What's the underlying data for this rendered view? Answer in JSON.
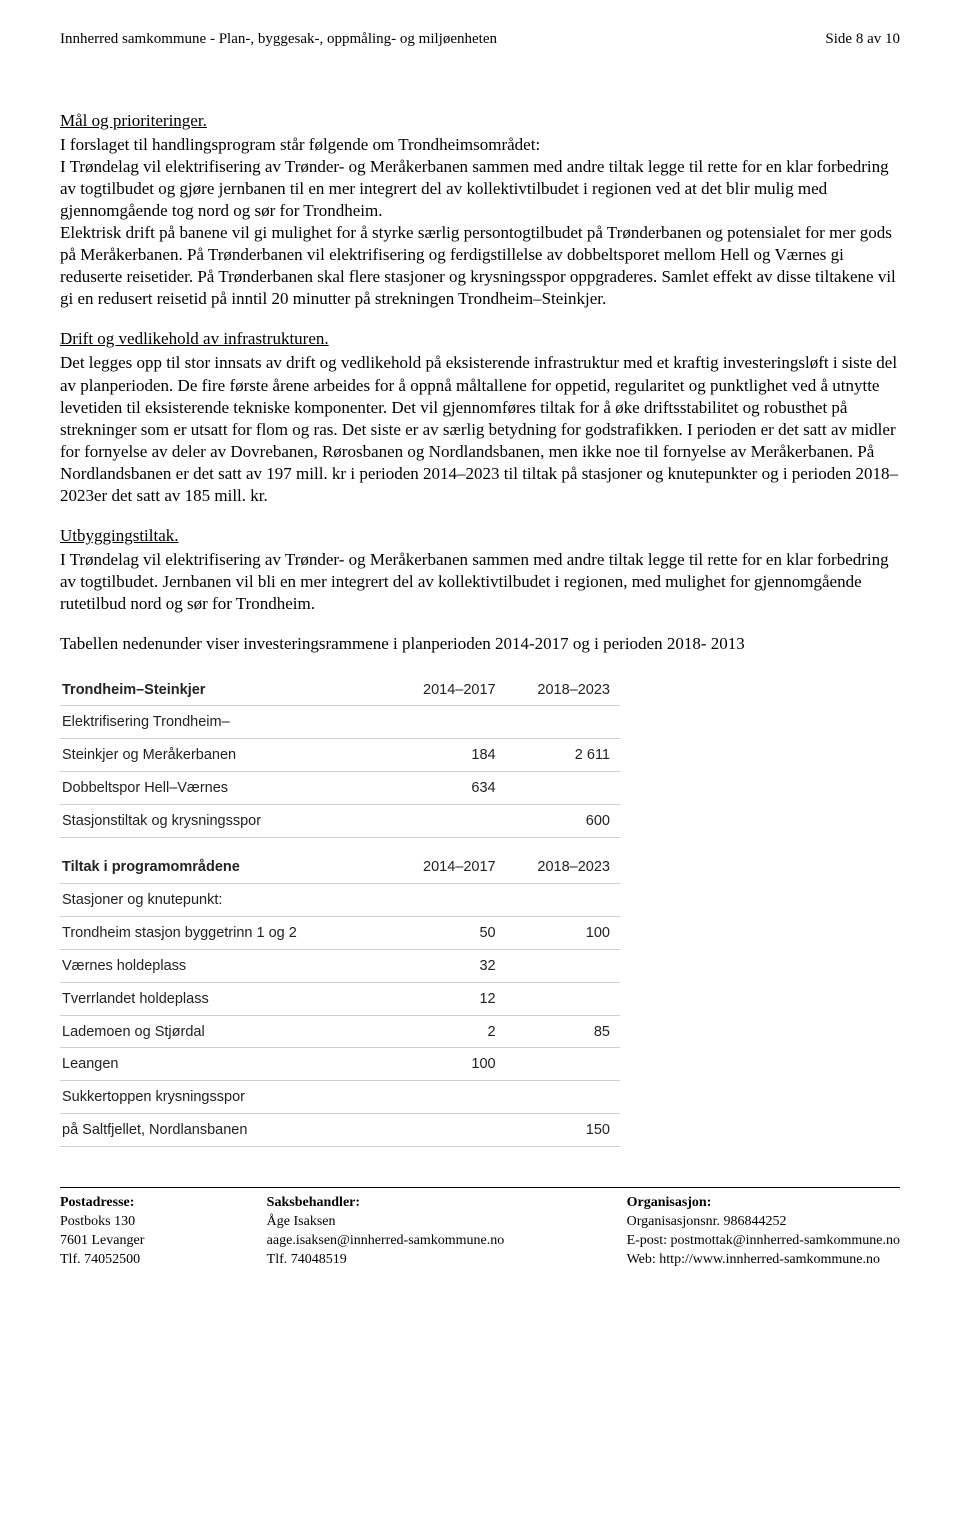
{
  "header": {
    "left": "Innherred samkommune - Plan-, byggesak-, oppmåling- og miljøenheten",
    "right": "Side 8 av 10"
  },
  "sections": {
    "goals": {
      "heading": "Mål og prioriteringer.",
      "text": "I forslaget til handlingsprogram står følgende om Trondheimsområdet:\nI Trøndelag vil elektrifisering av Trønder- og Meråkerbanen sammen med andre tiltak legge til rette for en klar forbedring av togtilbudet og gjøre jernbanen til en mer integrert del av kollektivtilbudet i regionen ved at det blir mulig med gjennomgående tog nord og sør for Trondheim.\nElektrisk drift på banene vil gi mulighet for å styrke særlig persontogtilbudet på Trønderbanen og potensialet for mer gods på Meråkerbanen. På Trønderbanen vil elektrifisering og ferdigstillelse av dobbeltsporet mellom Hell og Værnes gi reduserte reisetider. På Trønderbanen skal flere stasjoner og krysningsspor oppgraderes. Samlet effekt av disse tiltakene vil gi en redusert reisetid på inntil 20 minutter på strekningen Trondheim–Steinkjer."
    },
    "maintenance": {
      "heading": "Drift og vedlikehold av infrastrukturen.",
      "text": "Det legges opp til stor innsats av drift og vedlikehold på eksisterende infrastruktur med et kraftig investeringsløft i siste del av planperioden. De fire første årene arbeides for å oppnå måltallene for oppetid, regularitet og punktlighet ved å utnytte levetiden til eksisterende tekniske komponenter. Det vil gjennomføres tiltak for å øke driftsstabilitet og robusthet på strekninger som er utsatt for flom og ras. Det siste er av særlig betydning for godstrafikken. I perioden er det satt av midler for fornyelse av deler av Dovrebanen, Rørosbanen og Nordlandsbanen, men ikke noe til fornyelse av Meråkerbanen. På Nordlandsbanen er det satt av 197 mill. kr i perioden 2014–2023 til tiltak på stasjoner og knutepunkter og i perioden 2018–2023er det satt av 185 mill. kr."
    },
    "construction": {
      "heading": "Utbyggingstiltak.",
      "text": "I Trøndelag vil elektrifisering av Trønder- og Meråkerbanen sammen med andre tiltak legge til rette for en klar forbedring av togtilbudet. Jernbanen vil bli en mer integrert del av kollektivtilbudet i regionen, med mulighet for gjennomgående rutetilbud nord og sør for Trondheim."
    },
    "table_intro": "Tabellen nedenunder viser investeringsrammene i planperioden 2014-2017 og i perioden 2018- 2013"
  },
  "investment_table": {
    "col_years": [
      "2014–2017",
      "2018–2023"
    ],
    "group1_header": "Trondheim–Steinkjer",
    "group1_rows": [
      {
        "label_line1": "Elektrifisering Trondheim–",
        "label_line2": "Steinkjer og Meråkerbanen",
        "v1": "184",
        "v2": "2 611"
      },
      {
        "label_line1": "Dobbeltspor Hell–Værnes",
        "label_line2": "",
        "v1": "634",
        "v2": ""
      },
      {
        "label_line1": "Stasjonstiltak og krysningsspor",
        "label_line2": "",
        "v1": "",
        "v2": "600"
      }
    ],
    "group2_header": "Tiltak i programområdene",
    "group2_sub": "Stasjoner og knutepunkt:",
    "group2_rows": [
      {
        "label": "Trondheim stasjon byggetrinn 1 og 2",
        "v1": "50",
        "v2": "100"
      },
      {
        "label": "Værnes holdeplass",
        "v1": "32",
        "v2": ""
      },
      {
        "label": "Tverrlandet holdeplass",
        "v1": "12",
        "v2": ""
      },
      {
        "label": "Lademoen og Stjørdal",
        "v1": "2",
        "v2": "85"
      },
      {
        "label": "Leangen",
        "v1": "100",
        "v2": ""
      },
      {
        "label": "Sukkertoppen krysningsspor",
        "v1": "",
        "v2": ""
      },
      {
        "label": "på Saltfjellet, Nordlansbanen",
        "v1": "",
        "v2": "150"
      }
    ]
  },
  "footer": {
    "col1": {
      "h": "Postadresse:",
      "l1": "Postboks 130",
      "l2": "7601 Levanger",
      "l3": "Tlf. 74052500"
    },
    "col2": {
      "h": "Saksbehandler:",
      "l1": "Åge Isaksen",
      "l2": "aage.isaksen@innherred-samkommune.no",
      "l3": "Tlf.  74048519"
    },
    "col3": {
      "h": "Organisasjon:",
      "l1": "Organisasjonsnr. 986844252",
      "l2": "E-post: postmottak@innherred-samkommune.no",
      "l3": "Web: http://www.innherred-samkommune.no"
    }
  }
}
